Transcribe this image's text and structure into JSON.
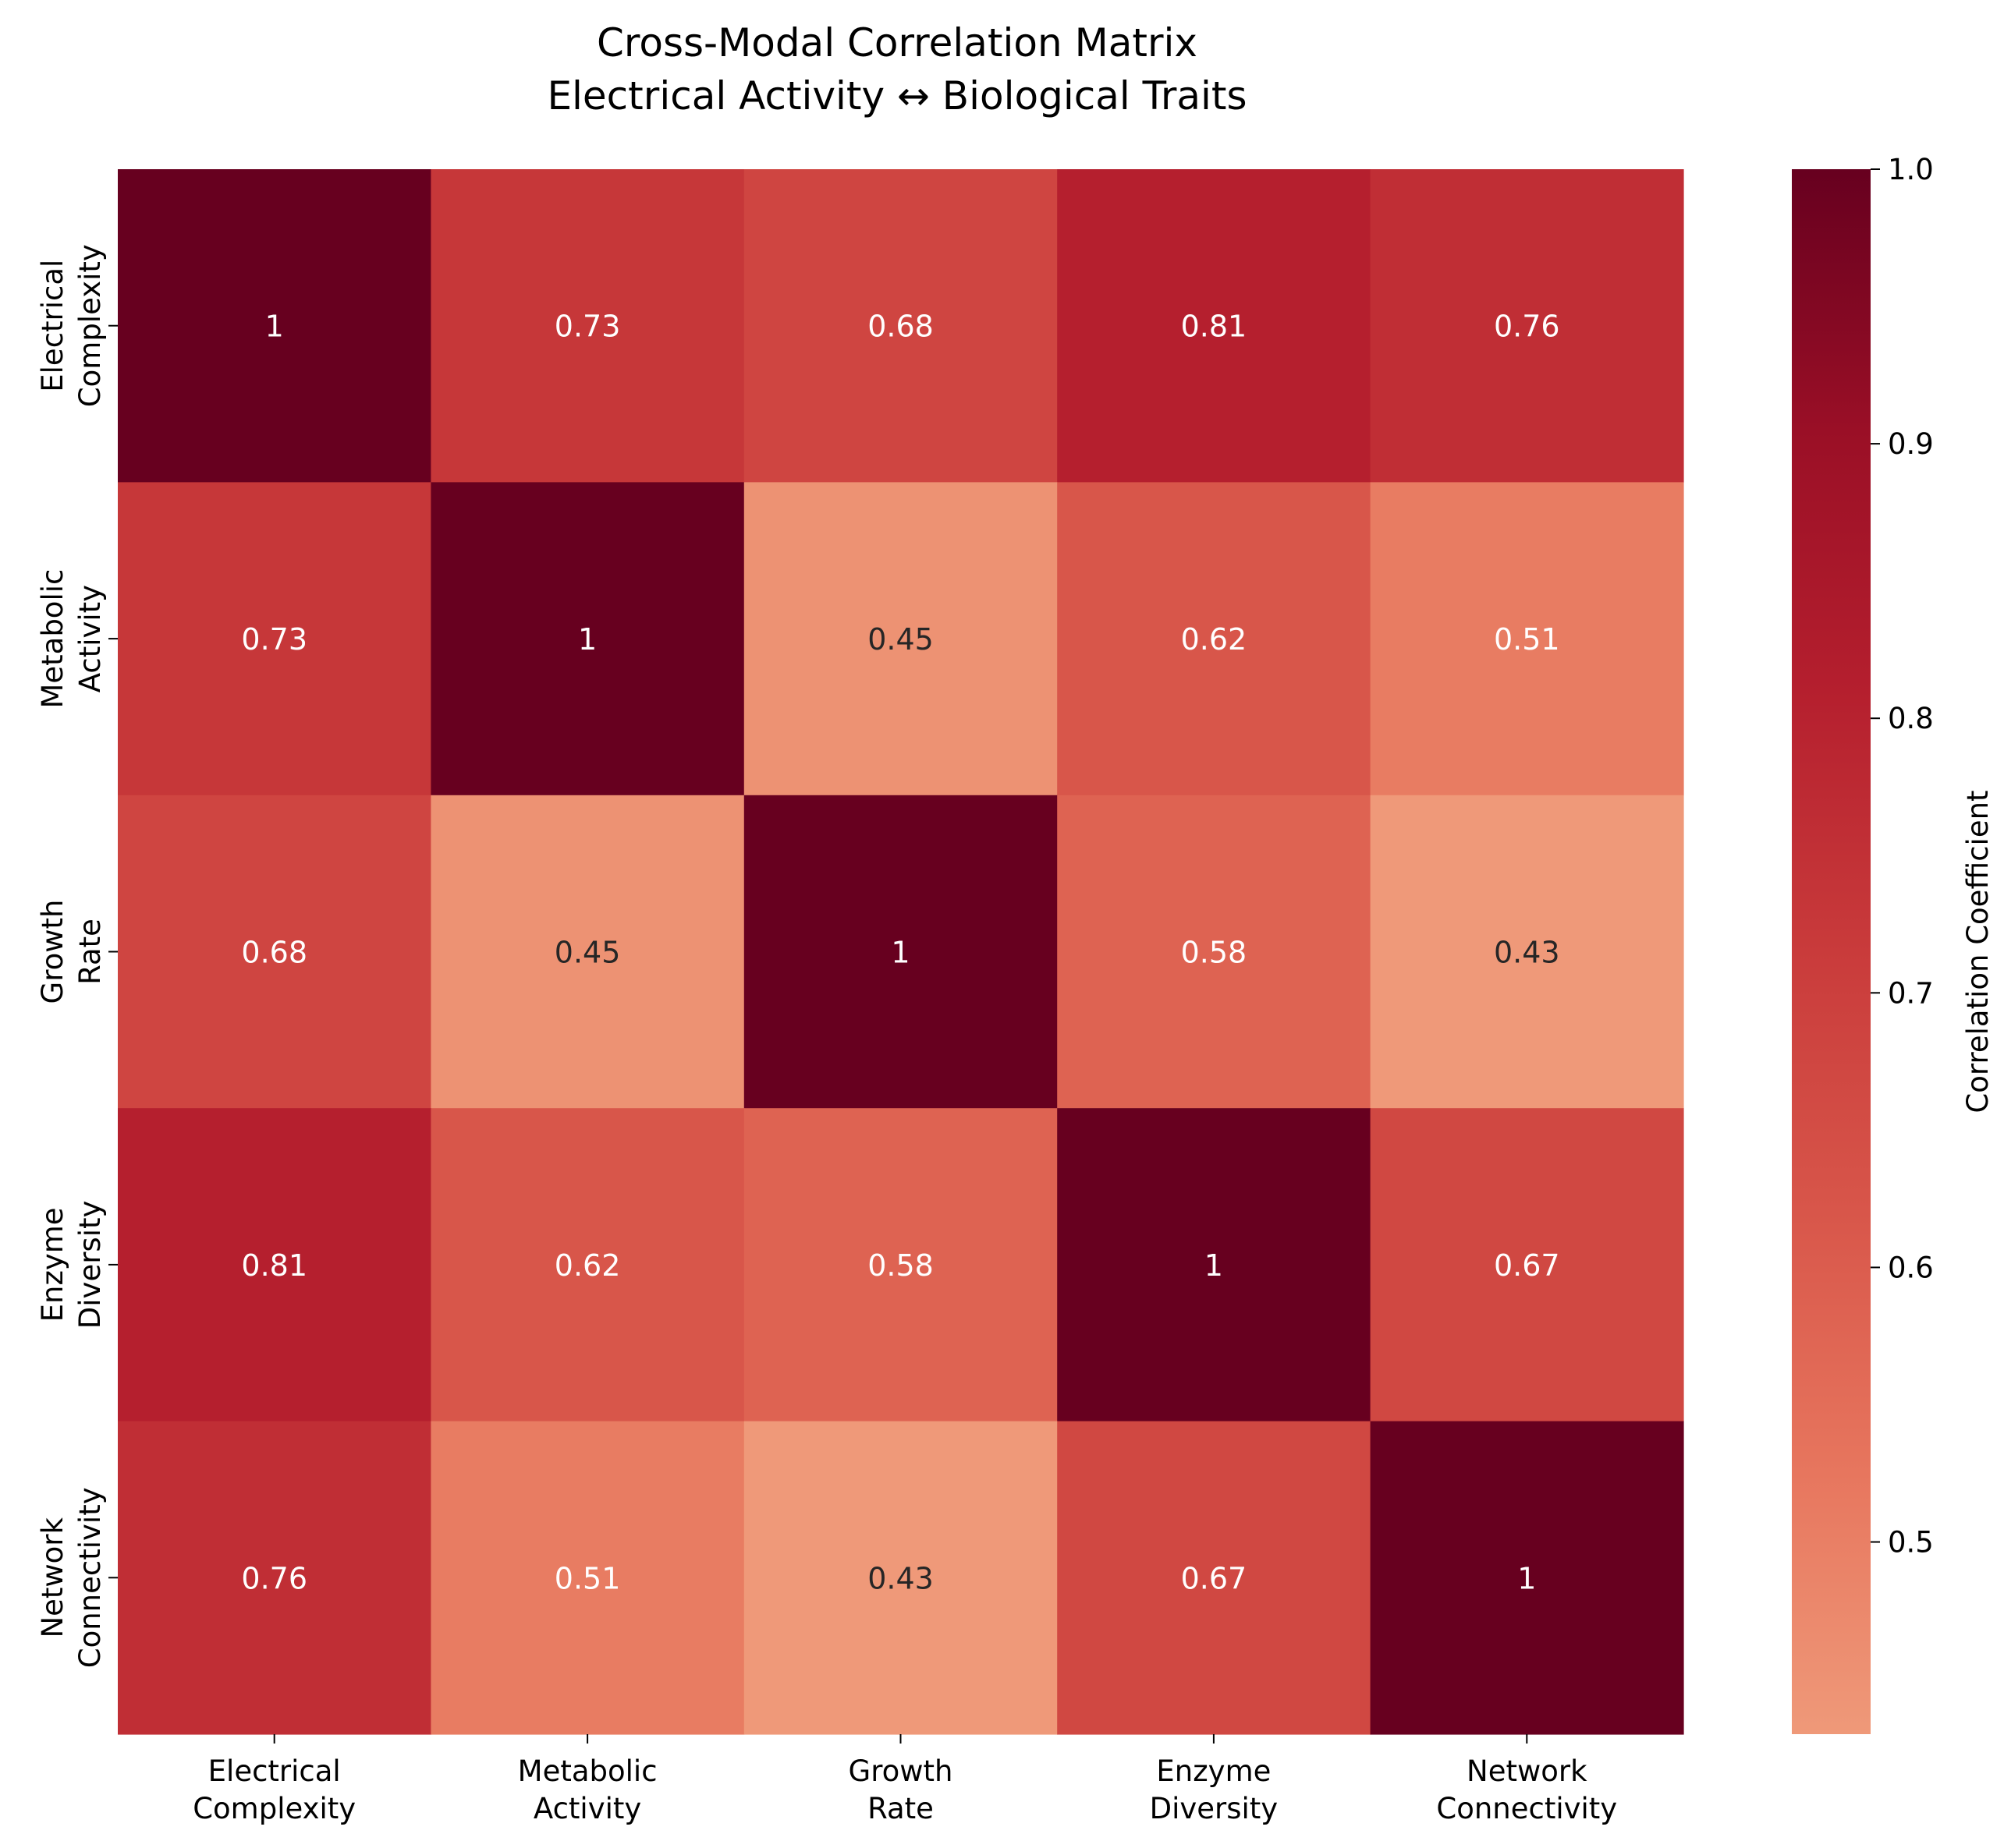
{
  "chart_data": {
    "type": "heatmap",
    "title_lines": [
      "Cross-Modal Correlation Matrix",
      "Electrical Activity ↔ Biological Traits"
    ],
    "x_tick_labels": [
      [
        "Electrical",
        "Complexity"
      ],
      [
        "Metabolic",
        "Activity"
      ],
      [
        "Growth",
        "Rate"
      ],
      [
        "Enzyme",
        "Diversity"
      ],
      [
        "Network",
        "Connectivity"
      ]
    ],
    "y_tick_labels": [
      [
        "Electrical",
        "Complexity"
      ],
      [
        "Metabolic",
        "Activity"
      ],
      [
        "Growth",
        "Rate"
      ],
      [
        "Enzyme",
        "Diversity"
      ],
      [
        "Network",
        "Connectivity"
      ]
    ],
    "values": [
      [
        1,
        0.73,
        0.68,
        0.81,
        0.76
      ],
      [
        0.73,
        1,
        0.45,
        0.62,
        0.51
      ],
      [
        0.68,
        0.45,
        1,
        0.58,
        0.43
      ],
      [
        0.81,
        0.62,
        0.58,
        1,
        0.67
      ],
      [
        0.76,
        0.51,
        0.43,
        0.67,
        1
      ]
    ],
    "colorbar": {
      "label": "Correlation Coefficient",
      "range": [
        0.43,
        1.0
      ],
      "ticks": [
        "0.5",
        "0.6",
        "0.7",
        "0.8",
        "0.9",
        "1.0"
      ],
      "colormap": "Reds (upper portion)",
      "color_stops": [
        "#ef9979",
        "#e7765e",
        "#d8564a",
        "#c93b3b",
        "#b51f2e",
        "#9a0f26",
        "#67001f"
      ]
    },
    "annotation_colors": {
      "light": "#ffffff",
      "dark": "#262626"
    }
  }
}
